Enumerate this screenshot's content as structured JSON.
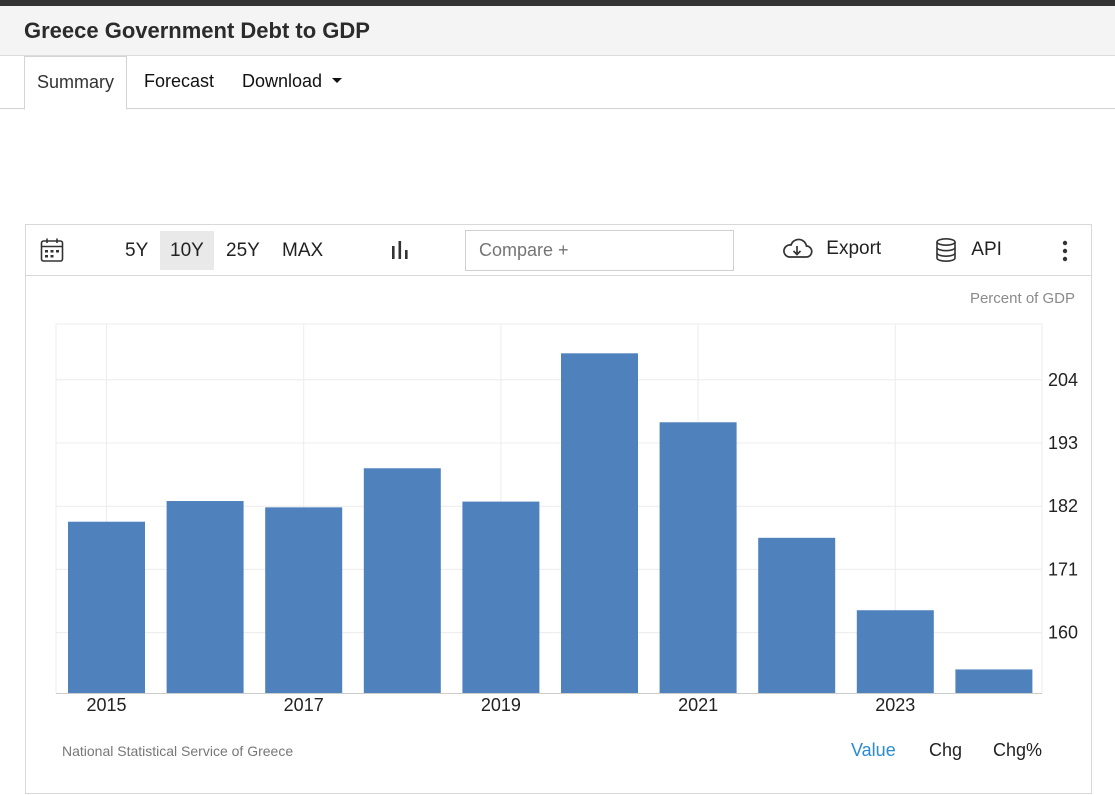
{
  "page": {
    "title": "Greece Government Debt to GDP"
  },
  "tabs": [
    {
      "label": "Summary"
    },
    {
      "label": "Forecast"
    },
    {
      "label": "Download"
    }
  ],
  "toolbar": {
    "ranges": [
      "5Y",
      "10Y",
      "25Y",
      "MAX"
    ],
    "active_range": "10Y",
    "compare_placeholder": "Compare +",
    "export_label": "Export",
    "api_label": "API",
    "icons": [
      "calendar-icon",
      "bar-chart-icon",
      "cloud-download-icon",
      "database-icon",
      "more-vertical-icon"
    ]
  },
  "footer": {
    "source": "National Statistical Service of Greece",
    "value_tabs": [
      "Value",
      "Chg",
      "Chg%"
    ],
    "active_value_tab": "Value"
  },
  "colors": {
    "bar": "#4f81bd",
    "active_link": "#2a8bd5",
    "grid": "#ececec"
  },
  "chart_data": {
    "type": "bar",
    "unit_label": "Percent of GDP",
    "x": [
      2015,
      2016,
      2017,
      2018,
      2019,
      2020,
      2021,
      2022,
      2023,
      2024
    ],
    "x_tick_labels": [
      "2015",
      "2017",
      "2019",
      "2021",
      "2023"
    ],
    "values": [
      179.3,
      182.9,
      181.8,
      188.6,
      182.8,
      208.6,
      196.6,
      176.5,
      163.9,
      153.6
    ],
    "y_ticks": [
      160,
      171,
      182,
      193,
      204
    ],
    "ylim": [
      149.5,
      213.7
    ],
    "y_axis_position": "right",
    "grid": true
  }
}
